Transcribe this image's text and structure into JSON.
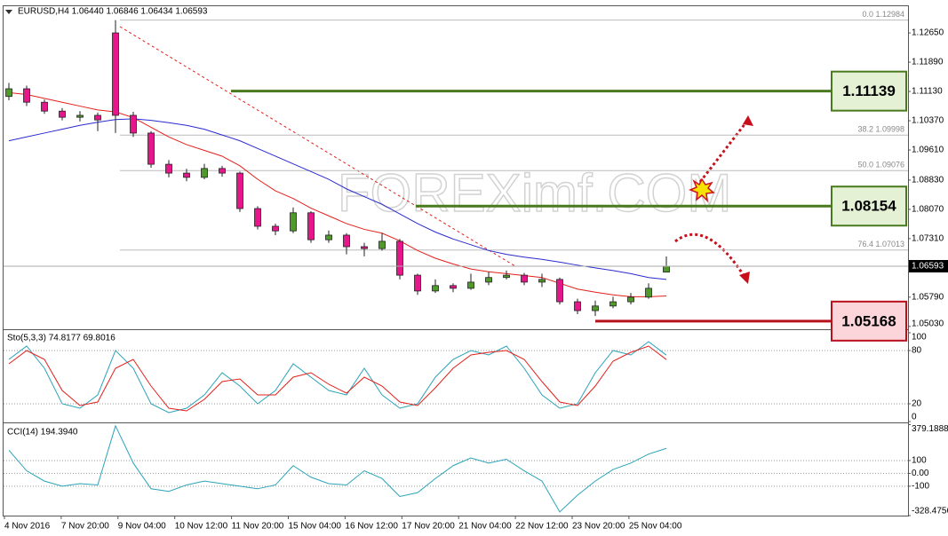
{
  "chart_data": [
    {
      "type": "candlestick",
      "title": "EURUSD,H4 1.06440 1.06846 1.06434 1.06593",
      "watermark": "FOREXimf.COM",
      "up_color": "#4f9a2a",
      "down_color": "#e6178b",
      "open": [
        1.11,
        1.112,
        1.1085,
        1.1062,
        1.1046,
        1.1051,
        1.1265,
        1.1051,
        1.1005,
        1.0924,
        1.0901,
        1.089,
        1.0913,
        1.0901,
        1.0809,
        1.0763,
        1.0751,
        1.0798,
        1.0728,
        1.074,
        1.071,
        1.0705,
        1.0724,
        1.0636,
        1.0595,
        1.0609,
        1.0602,
        1.0618,
        1.063,
        1.0636,
        1.0618,
        1.0625,
        1.0567,
        1.0544,
        1.0556,
        1.0567,
        1.0579,
        1.0644
      ],
      "high": [
        1.1135,
        1.1128,
        1.1092,
        1.107,
        1.1062,
        1.1058,
        1.12984,
        1.106,
        1.101,
        1.0935,
        1.0912,
        1.0925,
        1.092,
        1.0905,
        1.0815,
        1.077,
        1.0812,
        1.0802,
        1.0752,
        1.0745,
        1.072,
        1.0745,
        1.073,
        1.064,
        1.0625,
        1.0615,
        1.064,
        1.0645,
        1.0648,
        1.0642,
        1.064,
        1.063,
        1.0575,
        1.057,
        1.058,
        1.059,
        1.0615,
        1.06846
      ],
      "low": [
        1.109,
        1.1075,
        1.1055,
        1.1038,
        1.1035,
        1.101,
        1.1005,
        1.0995,
        1.0915,
        1.089,
        1.088,
        1.0885,
        1.0892,
        1.08,
        1.0755,
        1.074,
        1.0745,
        1.072,
        1.072,
        1.069,
        1.0685,
        1.07,
        1.0625,
        1.0585,
        1.059,
        1.0592,
        1.0598,
        1.061,
        1.0625,
        1.061,
        1.0605,
        1.056,
        1.0535,
        1.053,
        1.055,
        1.056,
        1.0575,
        1.06434
      ],
      "close": [
        1.112,
        1.1085,
        1.1062,
        1.1046,
        1.1051,
        1.1039,
        1.1051,
        1.1005,
        1.0924,
        1.0901,
        1.089,
        1.0913,
        1.0901,
        1.0809,
        1.0763,
        1.0751,
        1.0798,
        1.0728,
        1.074,
        1.071,
        1.0705,
        1.0724,
        1.0636,
        1.0595,
        1.0609,
        1.0602,
        1.0618,
        1.063,
        1.0636,
        1.0618,
        1.0625,
        1.0567,
        1.0544,
        1.0556,
        1.0567,
        1.0579,
        1.0602,
        1.06593
      ],
      "moving_averages": [
        {
          "color": "#e3201b",
          "values": [
            1.111,
            1.1105,
            1.1095,
            1.1085,
            1.1075,
            1.1065,
            1.106,
            1.1045,
            1.102,
            1.0995,
            1.0975,
            1.096,
            1.0945,
            1.092,
            1.0885,
            1.0855,
            1.0835,
            1.081,
            1.079,
            1.077,
            1.0755,
            1.0745,
            1.0725,
            1.07,
            1.068,
            1.0665,
            1.0652,
            1.0645,
            1.064,
            1.0635,
            1.063,
            1.0615,
            1.06,
            1.0592,
            1.0585,
            1.058,
            1.058,
            1.0582
          ]
        },
        {
          "color": "#2a2ad0",
          "values": [
            1.0985,
            1.0995,
            1.1005,
            1.1015,
            1.1025,
            1.1033,
            1.104,
            1.1042,
            1.1038,
            1.1032,
            1.1025,
            1.1015,
            1.1,
            1.0985,
            1.0965,
            1.0945,
            1.0925,
            1.0905,
            1.0885,
            1.086,
            1.084,
            1.082,
            1.0795,
            1.077,
            1.0748,
            1.073,
            1.0715,
            1.07,
            1.069,
            1.0683,
            1.0677,
            1.067,
            1.0662,
            1.0655,
            1.0648,
            1.064,
            1.063,
            1.0625
          ]
        }
      ],
      "ylim": [
        1.0498,
        1.1332
      ],
      "yticks": [
        {
          "value": 1.1265,
          "label": "1.12650"
        },
        {
          "value": 1.1189,
          "label": "1.11890"
        },
        {
          "value": 1.1113,
          "label": "1.11130"
        },
        {
          "value": 1.1037,
          "label": "1.10370"
        },
        {
          "value": 1.0961,
          "label": "1.09610"
        },
        {
          "value": 1.0883,
          "label": "1.08830"
        },
        {
          "value": 1.0807,
          "label": "1.08070"
        },
        {
          "value": 1.0731,
          "label": "1.07310"
        },
        {
          "value": 1.0579,
          "label": "1.05790"
        },
        {
          "value": 1.0503,
          "label": "1.05030"
        }
      ],
      "price_tag": {
        "value": 1.06593,
        "label": "1.06593"
      },
      "fib_levels": [
        {
          "value": 1.12984,
          "label": "0.0 1.12984"
        },
        {
          "value": 1.09998,
          "label": "38.2 1.09998"
        },
        {
          "value": 1.09076,
          "label": "50.0 1.09076"
        },
        {
          "value": 1.07013,
          "label": "76.4 1.07013"
        }
      ],
      "levels": [
        {
          "value": 1.11139,
          "label": "1.11139",
          "color": "#4a7a1e",
          "fill": "#e4f1d5"
        },
        {
          "value": 1.08154,
          "label": "1.08154",
          "color": "#4a7a1e",
          "fill": "#e4f1d5"
        },
        {
          "value": 1.05168,
          "label": "1.05168",
          "color": "#b8101c",
          "fill": "#fbd5da"
        }
      ],
      "x_labels": [
        "4 Nov 2016",
        "7 Nov 20:00",
        "9 Nov 04:00",
        "10 Nov 12:00",
        "11 Nov 20:00",
        "15 Nov 04:00",
        "16 Nov 12:00",
        "17 Nov 20:00",
        "21 Nov 04:00",
        "22 Nov 12:00",
        "23 Nov 20:00",
        "25 Nov 04:00"
      ]
    },
    {
      "type": "line",
      "title": "Sto(5,3,3) 74.8177 69.8016",
      "ylim": [
        0,
        100
      ],
      "yticks": [
        100,
        80,
        20,
        0
      ],
      "series": [
        {
          "color": "#2aa3b8",
          "values": [
            70,
            85,
            60,
            20,
            15,
            30,
            80,
            60,
            20,
            10,
            15,
            30,
            55,
            40,
            20,
            35,
            65,
            50,
            35,
            30,
            60,
            30,
            15,
            20,
            50,
            70,
            80,
            75,
            85,
            60,
            30,
            15,
            20,
            55,
            80,
            75,
            90,
            74.8177
          ]
        },
        {
          "color": "#e3201b",
          "values": [
            65,
            80,
            70,
            35,
            18,
            22,
            60,
            70,
            40,
            15,
            12,
            25,
            45,
            48,
            30,
            30,
            50,
            55,
            42,
            32,
            50,
            40,
            22,
            18,
            38,
            60,
            75,
            78,
            80,
            70,
            45,
            22,
            18,
            40,
            68,
            78,
            85,
            69.8016
          ]
        }
      ]
    },
    {
      "type": "line",
      "title": "CCI(14) 194.3940",
      "ylim": [
        -328.4756,
        379.1888
      ],
      "yticks": [
        379.1888,
        100,
        {
          "value": 0,
          "label": "0.00"
        },
        -100,
        -328.4756
      ],
      "series": [
        {
          "color": "#2aa3b8",
          "values": [
            180,
            20,
            -60,
            -100,
            -80,
            -90,
            370,
            80,
            -120,
            -140,
            -90,
            -60,
            -80,
            -100,
            -120,
            -90,
            60,
            -30,
            -80,
            -90,
            20,
            -40,
            -180,
            -150,
            -40,
            60,
            120,
            80,
            110,
            20,
            -60,
            -300,
            -170,
            -60,
            30,
            80,
            150,
            194.394
          ]
        }
      ]
    }
  ]
}
